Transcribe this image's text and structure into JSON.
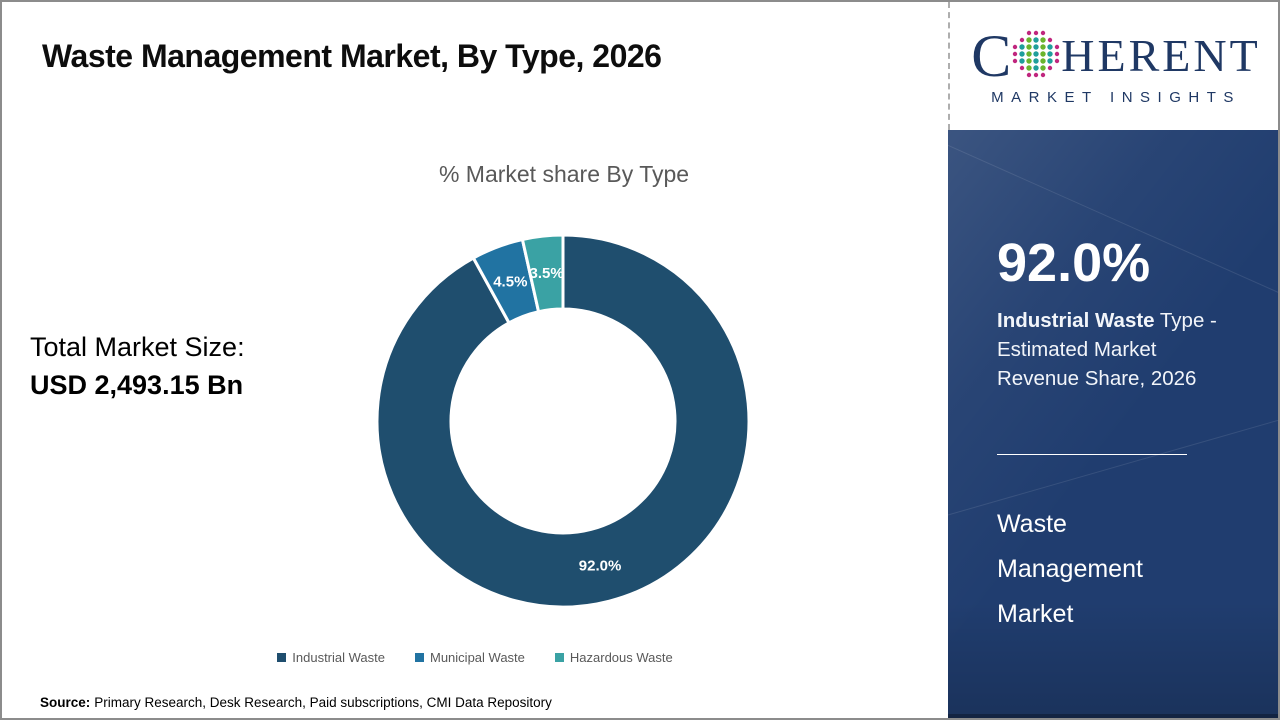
{
  "page": {
    "title": "Waste Management Market, By Type, 2026",
    "source_label": "Source:",
    "source_text": "Primary Research, Desk Research, Paid subscriptions, CMI Data Repository"
  },
  "logo": {
    "name": "Coherent Market Insights",
    "word_first_letter": "C",
    "word_rest": "HERENT",
    "subtitle": "MARKET INSIGHTS",
    "navy_color": "#1f3864",
    "globe_icon": "dotted-globe",
    "globe_colors": {
      "teal": "#1f9e9b",
      "green": "#6ab42d",
      "magenta": "#c0267e"
    }
  },
  "left_panel": {
    "label": "Total Market Size:",
    "value": "USD 2,493.15 Bn"
  },
  "chart_data": {
    "type": "pie",
    "subtype": "donut",
    "title": "% Market share By Type",
    "categories": [
      "Industrial Waste",
      "Municipal Waste",
      "Hazardous Waste"
    ],
    "values": [
      92.0,
      4.5,
      3.5
    ],
    "slice_labels": [
      "92.0%",
      "4.5%",
      "3.5%"
    ],
    "colors": [
      "#1f4e6e",
      "#2173a2",
      "#3aa2a4"
    ],
    "legend_position": "bottom",
    "start_angle_deg": 0,
    "direction": "clockwise",
    "inner_radius_ratio": 0.6
  },
  "sidebar": {
    "bg_color": "#203d6f",
    "stat_value": "92.0%",
    "stat_desc_bold": "Industrial Waste",
    "stat_desc_rest": " Type - Estimated Market Revenue Share, 2026",
    "market_name_lines": [
      "Waste",
      "Management",
      "Market"
    ]
  }
}
